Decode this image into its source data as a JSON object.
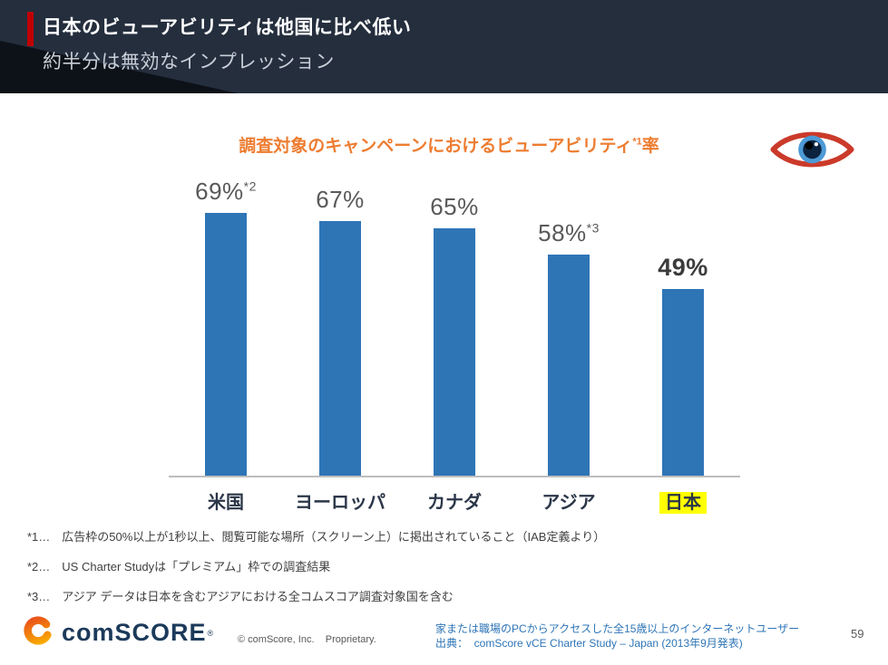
{
  "header": {
    "title": "日本のビューアビリティは他国に比べ低い",
    "subtitle": "約半分は無効なインプレッション",
    "accent_color": "#C00000",
    "bg_color": "#242E3D"
  },
  "chart": {
    "title_main": "調査対象のキャンペーンにおけるビューアビリティ",
    "title_sup": "*1",
    "title_tail": "率",
    "title_color": "#ED7D31"
  },
  "chart_data": {
    "type": "bar",
    "title": "調査対象のキャンペーンにおけるビューアビリティ*1率",
    "categories": [
      "米国",
      "ヨーロッパ",
      "カナダ",
      "アジア",
      "日本"
    ],
    "values": [
      69,
      67,
      65,
      58,
      49
    ],
    "bar_color": "#2E75B6",
    "ylim": [
      0,
      75
    ],
    "grid": false,
    "legend": false,
    "highlighted_category": "日本",
    "items": [
      {
        "category": "米国",
        "value": 69,
        "label": "69%",
        "sup": "*2",
        "bold": false,
        "highlight": false
      },
      {
        "category": "ヨーロッパ",
        "value": 67,
        "label": "67%",
        "sup": "",
        "bold": false,
        "highlight": false
      },
      {
        "category": "カナダ",
        "value": 65,
        "label": "65%",
        "sup": "",
        "bold": false,
        "highlight": false
      },
      {
        "category": "アジア",
        "value": 58,
        "label": "58%",
        "sup": "*3",
        "bold": false,
        "highlight": false
      },
      {
        "category": "日本",
        "value": 49,
        "label": "49%",
        "sup": "",
        "bold": true,
        "highlight": true
      }
    ]
  },
  "footnotes": [
    "*1…　広告枠の50%以上が1秒以上、閲覧可能な場所（スクリーン上）に掲出されていること（IAB定義より）",
    "*2…　US Charter Studyは「プレミアム」枠での調査結果",
    "*3…　アジア データは日本を含むアジアにおける全コムスコア調査対象国を含む"
  ],
  "footer": {
    "logo_text": "comSCORE",
    "logo_reg": "®",
    "copyright": "© comScore, Inc.    Proprietary.",
    "source_line1": "家または職場のPCからアクセスした全15歳以上のインターネットユーザー",
    "source_line2": "出典：  comScore vCE Charter Study – Japan (2013年9月発表)",
    "source_color": "#2E75B6",
    "page_number": "59"
  }
}
